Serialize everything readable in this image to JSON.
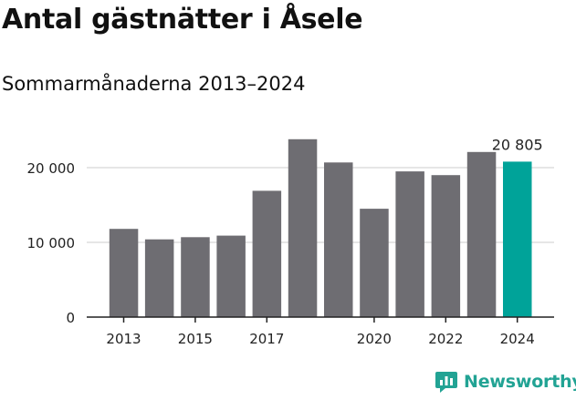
{
  "chart_data": {
    "type": "bar",
    "title": "Antal gästnätter i Åsele",
    "subtitle": "Sommarmånaderna 2013–2024",
    "categories": [
      "2013",
      "2014",
      "2015",
      "2016",
      "2017",
      "2018",
      "2019",
      "2020",
      "2021",
      "2022",
      "2023",
      "2024"
    ],
    "values": [
      11800,
      10400,
      10700,
      10900,
      16900,
      23800,
      20700,
      14500,
      19500,
      19000,
      22100,
      20805
    ],
    "x_tick_labels": [
      "2013",
      "2015",
      "2017",
      "2020",
      "2022",
      "2024"
    ],
    "y_ticks": [
      0,
      10000,
      20000
    ],
    "y_tick_labels": [
      "0",
      "10 000",
      "20 000"
    ],
    "ylim": [
      0,
      25500
    ],
    "highlight_index": 11,
    "highlight_label": "20 805",
    "grid": true,
    "colors": {
      "bar": "#6e6d72",
      "highlight": "#00a399",
      "grid": "#dddddd",
      "axis": "#222222"
    }
  },
  "brand": {
    "name": "Newsworthy",
    "color": "#22a394"
  }
}
